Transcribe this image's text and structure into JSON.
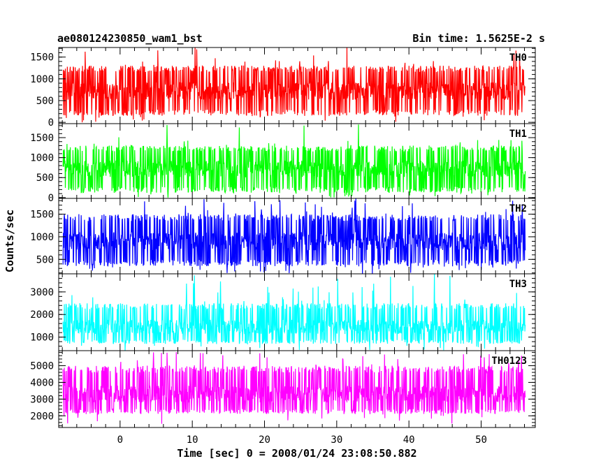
{
  "header": {
    "left_title": "ae080124230850_wam1_bst",
    "right_title": "Bin time: 1.5625E-2 s"
  },
  "chart_data": {
    "type": "line",
    "xlabel": "Time [sec] 0 = 2008/01/24 23:08:50.882",
    "ylabel": "Counts/sec",
    "xlim": [
      -8.5,
      57.5
    ],
    "x_data_range": [
      -7.9,
      56.1
    ],
    "x_ticks": [
      0,
      10,
      20,
      30,
      40,
      50
    ],
    "x_tick_labels": [
      "0",
      "10",
      "20",
      "30",
      "40",
      "50"
    ],
    "grid": false,
    "panels": [
      {
        "name": "TH0",
        "color": "#ff0000",
        "ylim": [
          -30,
          1720
        ],
        "yticks": [
          0,
          500,
          1000,
          1500
        ],
        "ytick_labels": [
          "0",
          "500",
          "1000",
          "1500"
        ],
        "mean": 720,
        "typical_low": 150,
        "typical_high": 1300,
        "max": 1720,
        "min": 0
      },
      {
        "name": "TH1",
        "color": "#00ff00",
        "ylim": [
          -20,
          1850
        ],
        "yticks": [
          0,
          500,
          1000,
          1500
        ],
        "ytick_labels": [
          "0",
          "500",
          "1000",
          "1500"
        ],
        "mean": 720,
        "typical_low": 120,
        "typical_high": 1300,
        "max": 1850,
        "min": 0
      },
      {
        "name": "TH2",
        "color": "#0000ff",
        "ylim": [
          180,
          1850
        ],
        "yticks": [
          500,
          1000,
          1500
        ],
        "ytick_labels": [
          "500",
          "1000",
          "1500"
        ],
        "mean": 900,
        "typical_low": 350,
        "typical_high": 1500,
        "max": 1850,
        "min": 180
      },
      {
        "name": "TH3",
        "color": "#00ffff",
        "ylim": [
          400,
          3800
        ],
        "yticks": [
          1000,
          2000,
          3000
        ],
        "ytick_labels": [
          "1000",
          "2000",
          "3000"
        ],
        "mean": 1450,
        "typical_low": 700,
        "typical_high": 2500,
        "max": 3800,
        "min": 400
      },
      {
        "name": "TH0123",
        "color": "#ff00ff",
        "ylim": [
          1300,
          5900
        ],
        "yticks": [
          2000,
          3000,
          4000,
          5000
        ],
        "ytick_labels": [
          "2000",
          "3000",
          "4000",
          "5000"
        ],
        "mean": 3300,
        "typical_low": 2100,
        "typical_high": 5000,
        "max": 5900,
        "min": 1300
      }
    ]
  }
}
